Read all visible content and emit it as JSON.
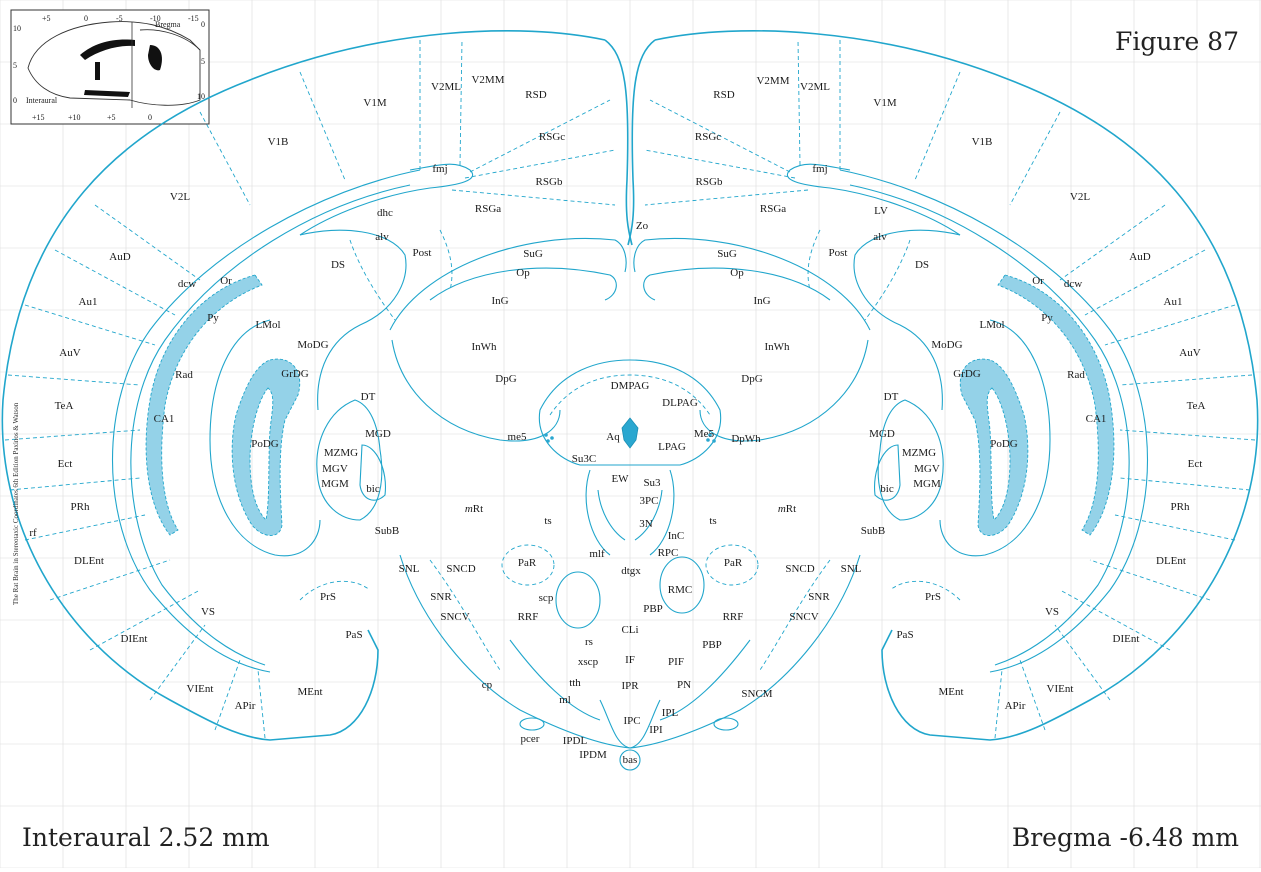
{
  "figure_title": "Figure 87",
  "interaural": "Interaural 2.52 mm",
  "bregma": "Bregma -6.48 mm",
  "credit": "The Rat Brain in Stereotaxic Coordinates 6th Edition Paxinos & Watson",
  "inset": {
    "title": "Bregma",
    "left_label": "Interaural",
    "top_ticks": [
      "+5",
      "0",
      "-5",
      "-10",
      "-15"
    ],
    "bottom_ticks": [
      "+15",
      "+10",
      "+5",
      "0"
    ],
    "left_ticks": [
      "10",
      "5",
      "0"
    ],
    "right_ticks": [
      "0",
      "5",
      "10"
    ]
  },
  "colors": {
    "outline": "#21a6cc",
    "fill": "#94d2e8",
    "grid": "#dcdcdc",
    "text": "#1a1a1a"
  },
  "labels_left": [
    "V1M",
    "V2ML",
    "V2MM",
    "RSD",
    "RSGc",
    "V1B",
    "fmj",
    "RSGb",
    "V2L",
    "dhc",
    "RSGa",
    "alv",
    "Post",
    "AuD",
    "DS",
    "dcw",
    "Or",
    "Au1",
    "Py",
    "LMol",
    "MoDG",
    "AuV",
    "GrDG",
    "Rad",
    "TeA",
    "DT",
    "CA1",
    "PoDG",
    "MGD",
    "MZMG",
    "Ect",
    "MGV",
    "MGM",
    "bic",
    "PRh",
    "rf",
    "SubB",
    "DLEnt",
    "SNL",
    "SNCD",
    "SNR",
    "SNCV",
    "PrS",
    "VS",
    "PaS",
    "DIEnt",
    "VIEnt",
    "MEnt",
    "APir",
    "cp",
    "mRt",
    "ts",
    "PaR",
    "RRF"
  ],
  "labels_right": [
    "V2MM",
    "V2ML",
    "V1M",
    "RSD",
    "RSGc",
    "fmj",
    "V1B",
    "RSGb",
    "V2L",
    "RSGa",
    "LV",
    "alv",
    "Post",
    "AuD",
    "DS",
    "Or",
    "dcw",
    "Au1",
    "Py",
    "LMol",
    "MoDG",
    "AuV",
    "GrDG",
    "Rad",
    "TeA",
    "DT",
    "CA1",
    "PoDG",
    "MGD",
    "MZMG",
    "Ect",
    "MGV",
    "MGM",
    "bic",
    "PRh",
    "SubB",
    "DLEnt",
    "SNCD",
    "SNL",
    "SNR",
    "SNCV",
    "PrS",
    "VS",
    "PaS",
    "DIEnt",
    "MEnt",
    "VIEnt",
    "APir",
    "mRt",
    "ts",
    "PaR",
    "RRF",
    "SNCM"
  ],
  "labels_mid": [
    "Zo",
    "SuG",
    "SuG",
    "Op",
    "Op",
    "InG",
    "InG",
    "InWh",
    "InWh",
    "DpG",
    "DpG",
    "DMPAG",
    "DLPAG",
    "me5",
    "Aq",
    "Me5",
    "LPAG",
    "DpWh",
    "Su3C",
    "EW",
    "Su3",
    "3PC",
    "3N",
    "InC",
    "RPC",
    "mlf",
    "dtgx",
    "RMC",
    "scp",
    "PBP",
    "CLi",
    "rs",
    "PBP",
    "xscp",
    "IF",
    "PIF",
    "tth",
    "IPR",
    "PN",
    "ml",
    "IPL",
    "IPC",
    "IPI",
    "pcer",
    "IPDL",
    "IPDM",
    "bas"
  ]
}
